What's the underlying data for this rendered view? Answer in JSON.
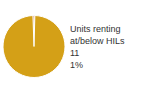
{
  "chart_data": {
    "type": "pie",
    "values": [
      1,
      99
    ],
    "colors": [
      "#c04a1a",
      "#d4a017"
    ],
    "annotation": "Units renting\nat/below HILs\n11\n1%"
  }
}
